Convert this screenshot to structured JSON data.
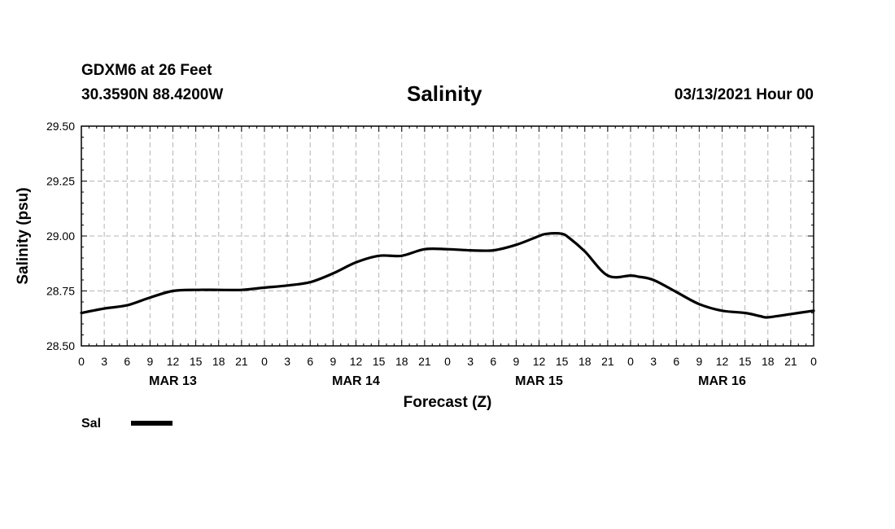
{
  "header": {
    "station": "GDXM6 at 26 Feet",
    "coords": "30.3590N 88.4200W",
    "datetime": "03/13/2021 Hour 00"
  },
  "chart_data": {
    "type": "line",
    "title": "Salinity",
    "xlabel": "Forecast (Z)",
    "ylabel": "Salinity (psu)",
    "ylim": [
      28.5,
      29.5
    ],
    "xlim": [
      0,
      96
    ],
    "y_ticks": [
      "28.50",
      "28.75",
      "29.00",
      "29.25",
      "29.50"
    ],
    "y_tick_values": [
      28.5,
      28.75,
      29.0,
      29.25,
      29.5
    ],
    "x_ticks": [
      "0",
      "3",
      "6",
      "9",
      "12",
      "15",
      "18",
      "21",
      "0",
      "3",
      "6",
      "9",
      "12",
      "15",
      "18",
      "21",
      "0",
      "3",
      "6",
      "9",
      "12",
      "15",
      "18",
      "21",
      "0",
      "3",
      "6",
      "9",
      "12",
      "15",
      "18",
      "21",
      "0"
    ],
    "day_labels": [
      {
        "label": "MAR 13",
        "hour": 12
      },
      {
        "label": "MAR 14",
        "hour": 36
      },
      {
        "label": "MAR 15",
        "hour": 60
      },
      {
        "label": "MAR 16",
        "hour": 84
      }
    ],
    "grid": true,
    "legend": [
      {
        "name": "Sal",
        "color": "#000000"
      }
    ],
    "series": [
      {
        "name": "Sal",
        "x": [
          0,
          3,
          6,
          9,
          12,
          15,
          18,
          21,
          24,
          27,
          30,
          33,
          36,
          39,
          42,
          45,
          48,
          51,
          54,
          57,
          60,
          61,
          63,
          64,
          66,
          69,
          72,
          73,
          75,
          78,
          81,
          84,
          87,
          89,
          90,
          93,
          96
        ],
        "values": [
          28.65,
          28.67,
          28.685,
          28.72,
          28.75,
          28.755,
          28.755,
          28.755,
          28.765,
          28.775,
          28.79,
          28.83,
          28.88,
          28.91,
          28.91,
          28.94,
          28.94,
          28.935,
          28.935,
          28.96,
          29.0,
          29.01,
          29.01,
          28.99,
          28.93,
          28.82,
          28.82,
          28.815,
          28.8,
          28.745,
          28.69,
          28.66,
          28.65,
          28.635,
          28.63,
          28.645,
          28.66
        ]
      }
    ]
  }
}
